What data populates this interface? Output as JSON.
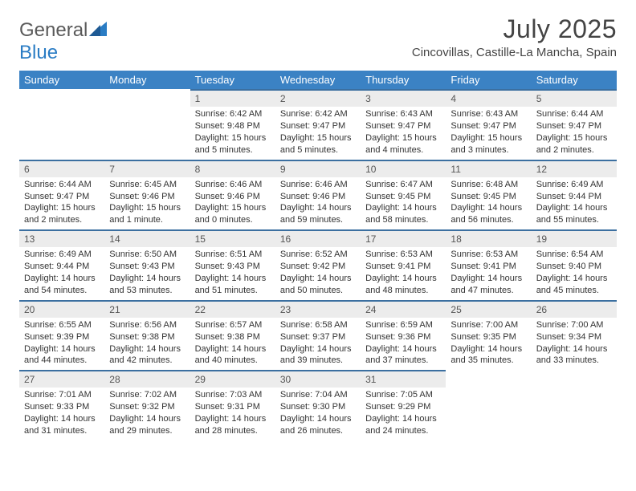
{
  "brand": {
    "name_part1": "General",
    "name_part2": "Blue",
    "icon_color": "#2a7cc4"
  },
  "header": {
    "month_title": "July 2025",
    "location": "Cincovillas, Castille-La Mancha, Spain"
  },
  "style": {
    "header_bg": "#3b82c4",
    "header_text": "#ffffff",
    "daynum_bg": "#ececec",
    "daynum_border": "#3b6fa0",
    "page_bg": "#ffffff"
  },
  "weekdays": [
    "Sunday",
    "Monday",
    "Tuesday",
    "Wednesday",
    "Thursday",
    "Friday",
    "Saturday"
  ],
  "weeks": [
    [
      {
        "n": "",
        "sr": "",
        "ss": "",
        "dl": ""
      },
      {
        "n": "",
        "sr": "",
        "ss": "",
        "dl": ""
      },
      {
        "n": "1",
        "sr": "Sunrise: 6:42 AM",
        "ss": "Sunset: 9:48 PM",
        "dl": "Daylight: 15 hours and 5 minutes."
      },
      {
        "n": "2",
        "sr": "Sunrise: 6:42 AM",
        "ss": "Sunset: 9:47 PM",
        "dl": "Daylight: 15 hours and 5 minutes."
      },
      {
        "n": "3",
        "sr": "Sunrise: 6:43 AM",
        "ss": "Sunset: 9:47 PM",
        "dl": "Daylight: 15 hours and 4 minutes."
      },
      {
        "n": "4",
        "sr": "Sunrise: 6:43 AM",
        "ss": "Sunset: 9:47 PM",
        "dl": "Daylight: 15 hours and 3 minutes."
      },
      {
        "n": "5",
        "sr": "Sunrise: 6:44 AM",
        "ss": "Sunset: 9:47 PM",
        "dl": "Daylight: 15 hours and 2 minutes."
      }
    ],
    [
      {
        "n": "6",
        "sr": "Sunrise: 6:44 AM",
        "ss": "Sunset: 9:47 PM",
        "dl": "Daylight: 15 hours and 2 minutes."
      },
      {
        "n": "7",
        "sr": "Sunrise: 6:45 AM",
        "ss": "Sunset: 9:46 PM",
        "dl": "Daylight: 15 hours and 1 minute."
      },
      {
        "n": "8",
        "sr": "Sunrise: 6:46 AM",
        "ss": "Sunset: 9:46 PM",
        "dl": "Daylight: 15 hours and 0 minutes."
      },
      {
        "n": "9",
        "sr": "Sunrise: 6:46 AM",
        "ss": "Sunset: 9:46 PM",
        "dl": "Daylight: 14 hours and 59 minutes."
      },
      {
        "n": "10",
        "sr": "Sunrise: 6:47 AM",
        "ss": "Sunset: 9:45 PM",
        "dl": "Daylight: 14 hours and 58 minutes."
      },
      {
        "n": "11",
        "sr": "Sunrise: 6:48 AM",
        "ss": "Sunset: 9:45 PM",
        "dl": "Daylight: 14 hours and 56 minutes."
      },
      {
        "n": "12",
        "sr": "Sunrise: 6:49 AM",
        "ss": "Sunset: 9:44 PM",
        "dl": "Daylight: 14 hours and 55 minutes."
      }
    ],
    [
      {
        "n": "13",
        "sr": "Sunrise: 6:49 AM",
        "ss": "Sunset: 9:44 PM",
        "dl": "Daylight: 14 hours and 54 minutes."
      },
      {
        "n": "14",
        "sr": "Sunrise: 6:50 AM",
        "ss": "Sunset: 9:43 PM",
        "dl": "Daylight: 14 hours and 53 minutes."
      },
      {
        "n": "15",
        "sr": "Sunrise: 6:51 AM",
        "ss": "Sunset: 9:43 PM",
        "dl": "Daylight: 14 hours and 51 minutes."
      },
      {
        "n": "16",
        "sr": "Sunrise: 6:52 AM",
        "ss": "Sunset: 9:42 PM",
        "dl": "Daylight: 14 hours and 50 minutes."
      },
      {
        "n": "17",
        "sr": "Sunrise: 6:53 AM",
        "ss": "Sunset: 9:41 PM",
        "dl": "Daylight: 14 hours and 48 minutes."
      },
      {
        "n": "18",
        "sr": "Sunrise: 6:53 AM",
        "ss": "Sunset: 9:41 PM",
        "dl": "Daylight: 14 hours and 47 minutes."
      },
      {
        "n": "19",
        "sr": "Sunrise: 6:54 AM",
        "ss": "Sunset: 9:40 PM",
        "dl": "Daylight: 14 hours and 45 minutes."
      }
    ],
    [
      {
        "n": "20",
        "sr": "Sunrise: 6:55 AM",
        "ss": "Sunset: 9:39 PM",
        "dl": "Daylight: 14 hours and 44 minutes."
      },
      {
        "n": "21",
        "sr": "Sunrise: 6:56 AM",
        "ss": "Sunset: 9:38 PM",
        "dl": "Daylight: 14 hours and 42 minutes."
      },
      {
        "n": "22",
        "sr": "Sunrise: 6:57 AM",
        "ss": "Sunset: 9:38 PM",
        "dl": "Daylight: 14 hours and 40 minutes."
      },
      {
        "n": "23",
        "sr": "Sunrise: 6:58 AM",
        "ss": "Sunset: 9:37 PM",
        "dl": "Daylight: 14 hours and 39 minutes."
      },
      {
        "n": "24",
        "sr": "Sunrise: 6:59 AM",
        "ss": "Sunset: 9:36 PM",
        "dl": "Daylight: 14 hours and 37 minutes."
      },
      {
        "n": "25",
        "sr": "Sunrise: 7:00 AM",
        "ss": "Sunset: 9:35 PM",
        "dl": "Daylight: 14 hours and 35 minutes."
      },
      {
        "n": "26",
        "sr": "Sunrise: 7:00 AM",
        "ss": "Sunset: 9:34 PM",
        "dl": "Daylight: 14 hours and 33 minutes."
      }
    ],
    [
      {
        "n": "27",
        "sr": "Sunrise: 7:01 AM",
        "ss": "Sunset: 9:33 PM",
        "dl": "Daylight: 14 hours and 31 minutes."
      },
      {
        "n": "28",
        "sr": "Sunrise: 7:02 AM",
        "ss": "Sunset: 9:32 PM",
        "dl": "Daylight: 14 hours and 29 minutes."
      },
      {
        "n": "29",
        "sr": "Sunrise: 7:03 AM",
        "ss": "Sunset: 9:31 PM",
        "dl": "Daylight: 14 hours and 28 minutes."
      },
      {
        "n": "30",
        "sr": "Sunrise: 7:04 AM",
        "ss": "Sunset: 9:30 PM",
        "dl": "Daylight: 14 hours and 26 minutes."
      },
      {
        "n": "31",
        "sr": "Sunrise: 7:05 AM",
        "ss": "Sunset: 9:29 PM",
        "dl": "Daylight: 14 hours and 24 minutes."
      },
      {
        "n": "",
        "sr": "",
        "ss": "",
        "dl": ""
      },
      {
        "n": "",
        "sr": "",
        "ss": "",
        "dl": ""
      }
    ]
  ]
}
